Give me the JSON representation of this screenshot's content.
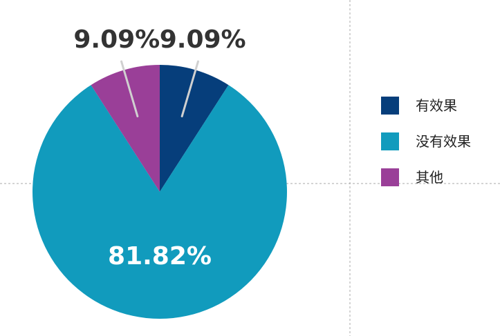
{
  "chart_data": {
    "type": "pie",
    "title": "",
    "categories": [
      "有效果",
      "没有效果",
      "其他"
    ],
    "values": [
      9.09,
      81.82,
      9.09
    ],
    "labels": [
      "9.09%",
      "81.82%",
      "9.09%"
    ],
    "colors": [
      "#063e7b",
      "#119bbd",
      "#9a3f98"
    ],
    "start_angle_deg": 0,
    "direction": "clockwise",
    "legend_position": "right",
    "grid": false
  }
}
